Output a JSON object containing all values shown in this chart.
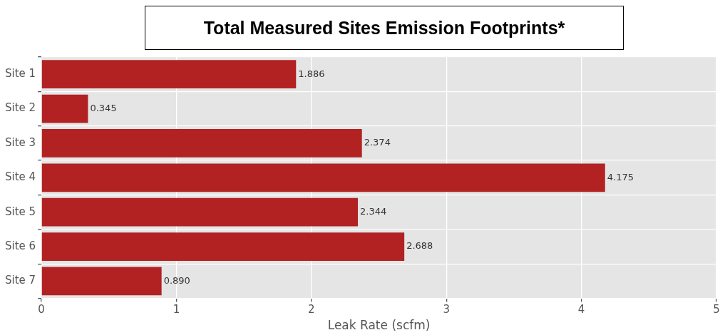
{
  "chart_data": {
    "type": "bar",
    "orientation": "horizontal",
    "title": "Total Measured Sites Emission Footprints*",
    "xlabel": "Leak Rate (scfm)",
    "categories": [
      "Site 1",
      "Site 2",
      "Site 3",
      "Site 4",
      "Site 5",
      "Site 6",
      "Site 7"
    ],
    "values": [
      1.886,
      0.345,
      2.374,
      4.175,
      2.344,
      2.688,
      0.89
    ],
    "value_labels": [
      "1.886",
      "0.345",
      "2.374",
      "4.175",
      "2.344",
      "2.688",
      "0.890"
    ],
    "color": "#b22222",
    "xlim": [
      0,
      5
    ],
    "xticks": [
      0,
      1,
      2,
      3,
      4,
      5
    ],
    "grid": true
  }
}
